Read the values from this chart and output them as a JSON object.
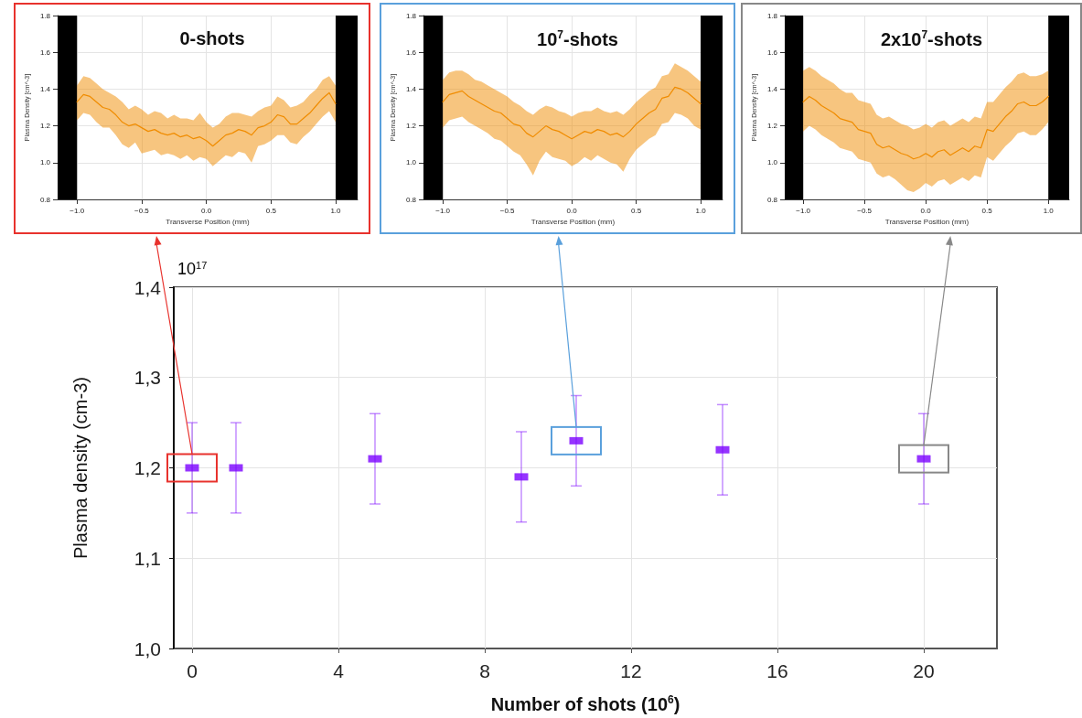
{
  "chart_data": [
    {
      "type": "line",
      "title": "0-shots",
      "xlabel": "Transverse Position (mm)",
      "ylabel": "Plasma Density [cm^-3]",
      "xlim": [
        -1.15,
        1.17
      ],
      "ylim": [
        0.8,
        1.8
      ],
      "xticks": [
        {
          "value": -1,
          "label": "−1.0"
        },
        {
          "value": -0.5,
          "label": "−0.5"
        },
        {
          "value": 0,
          "label": "0.0"
        },
        0.5,
        {
          "value": 1,
          "label": "1.0"
        }
      ],
      "yticks": [
        0.8,
        {
          "value": 1,
          "label": "1.0"
        },
        1.2,
        1.4,
        1.6,
        1.8
      ],
      "grid": true,
      "bands": [
        {
          "axis": "x",
          "from": -1.15,
          "to": -1.0,
          "color": "#000000"
        },
        {
          "axis": "x",
          "from": 1.0,
          "to": 1.17,
          "color": "#000000"
        }
      ],
      "x": [
        -1,
        -0.95,
        -0.9,
        -0.85,
        -0.8,
        -0.75,
        -0.7,
        -0.65,
        -0.6,
        -0.55,
        -0.5,
        -0.45,
        -0.4,
        -0.35,
        -0.3,
        -0.25,
        -0.2,
        -0.15,
        -0.1,
        -0.05,
        0,
        0.05,
        0.1,
        0.15,
        0.2,
        0.25,
        0.3,
        0.35,
        0.4,
        0.45,
        0.5,
        0.55,
        0.6,
        0.65,
        0.7,
        0.75,
        0.8,
        0.85,
        0.9,
        0.95,
        1
      ],
      "series": [
        {
          "color": "#f08c00",
          "values": [
            1.33,
            1.37,
            1.36,
            1.33,
            1.3,
            1.29,
            1.26,
            1.22,
            1.2,
            1.21,
            1.19,
            1.17,
            1.18,
            1.16,
            1.15,
            1.16,
            1.14,
            1.15,
            1.13,
            1.14,
            1.12,
            1.09,
            1.12,
            1.15,
            1.16,
            1.18,
            1.17,
            1.15,
            1.19,
            1.2,
            1.22,
            1.26,
            1.25,
            1.21,
            1.21,
            1.24,
            1.27,
            1.31,
            1.35,
            1.38,
            1.32
          ],
          "upper": [
            1.42,
            1.47,
            1.46,
            1.43,
            1.4,
            1.38,
            1.36,
            1.33,
            1.29,
            1.31,
            1.29,
            1.26,
            1.28,
            1.27,
            1.24,
            1.26,
            1.24,
            1.24,
            1.23,
            1.27,
            1.22,
            1.19,
            1.21,
            1.25,
            1.27,
            1.27,
            1.26,
            1.25,
            1.28,
            1.3,
            1.31,
            1.36,
            1.34,
            1.3,
            1.31,
            1.33,
            1.37,
            1.4,
            1.45,
            1.47,
            1.42
          ],
          "lower": [
            1.23,
            1.27,
            1.26,
            1.22,
            1.19,
            1.19,
            1.15,
            1.1,
            1.08,
            1.11,
            1.05,
            1.06,
            1.07,
            1.04,
            1.05,
            1.04,
            1.02,
            1.04,
            1.01,
            1.03,
            1.02,
            0.98,
            1.01,
            1.04,
            1.03,
            1.06,
            1.05,
            1.0,
            1.09,
            1.1,
            1.12,
            1.15,
            1.15,
            1.11,
            1.1,
            1.14,
            1.17,
            1.21,
            1.25,
            1.28,
            1.22
          ]
        }
      ]
    },
    {
      "type": "line",
      "title": "10$^{7}$-shots",
      "xlabel": "Transverse Position (mm)",
      "ylabel": "Plasma Density [cm^-3]",
      "xlim": [
        -1.15,
        1.17
      ],
      "ylim": [
        0.8,
        1.8
      ],
      "xticks": [
        {
          "value": -1,
          "label": "−1.0"
        },
        {
          "value": -0.5,
          "label": "−0.5"
        },
        {
          "value": 0,
          "label": "0.0"
        },
        0.5,
        {
          "value": 1,
          "label": "1.0"
        }
      ],
      "yticks": [
        0.8,
        {
          "value": 1,
          "label": "1.0"
        },
        1.2,
        1.4,
        1.6,
        1.8
      ],
      "grid": true,
      "bands": [
        {
          "axis": "x",
          "from": -1.15,
          "to": -1.0,
          "color": "#000000"
        },
        {
          "axis": "x",
          "from": 1.0,
          "to": 1.17,
          "color": "#000000"
        }
      ],
      "x": [
        -1,
        -0.95,
        -0.9,
        -0.85,
        -0.8,
        -0.75,
        -0.7,
        -0.65,
        -0.6,
        -0.55,
        -0.5,
        -0.45,
        -0.4,
        -0.35,
        -0.3,
        -0.25,
        -0.2,
        -0.15,
        -0.1,
        -0.05,
        0,
        0.05,
        0.1,
        0.15,
        0.2,
        0.25,
        0.3,
        0.35,
        0.4,
        0.45,
        0.5,
        0.55,
        0.6,
        0.65,
        0.7,
        0.75,
        0.8,
        0.85,
        0.9,
        0.95,
        1
      ],
      "series": [
        {
          "color": "#f08c00",
          "values": [
            1.33,
            1.37,
            1.38,
            1.39,
            1.36,
            1.34,
            1.32,
            1.3,
            1.28,
            1.27,
            1.24,
            1.21,
            1.2,
            1.16,
            1.14,
            1.17,
            1.2,
            1.18,
            1.17,
            1.15,
            1.13,
            1.15,
            1.17,
            1.16,
            1.18,
            1.17,
            1.15,
            1.16,
            1.14,
            1.17,
            1.21,
            1.24,
            1.27,
            1.29,
            1.35,
            1.36,
            1.41,
            1.4,
            1.38,
            1.35,
            1.32
          ],
          "upper": [
            1.45,
            1.49,
            1.5,
            1.5,
            1.48,
            1.45,
            1.44,
            1.42,
            1.4,
            1.38,
            1.36,
            1.33,
            1.31,
            1.28,
            1.26,
            1.29,
            1.31,
            1.3,
            1.28,
            1.27,
            1.25,
            1.27,
            1.28,
            1.28,
            1.3,
            1.28,
            1.27,
            1.28,
            1.26,
            1.29,
            1.33,
            1.36,
            1.39,
            1.41,
            1.47,
            1.48,
            1.54,
            1.52,
            1.5,
            1.47,
            1.44
          ],
          "lower": [
            1.19,
            1.23,
            1.24,
            1.25,
            1.22,
            1.2,
            1.18,
            1.16,
            1.13,
            1.12,
            1.09,
            1.06,
            1.04,
            0.99,
            0.93,
            1.01,
            1.06,
            1.03,
            1.02,
            1.01,
            0.98,
            1.0,
            1.03,
            1.01,
            1.04,
            1.02,
            1.0,
            0.99,
            0.95,
            1.02,
            1.07,
            1.1,
            1.13,
            1.15,
            1.21,
            1.22,
            1.27,
            1.26,
            1.24,
            1.2,
            1.18
          ]
        }
      ]
    },
    {
      "type": "line",
      "title": "2x10$^{7}$-shots",
      "xlabel": "Transverse Position (mm)",
      "ylabel": "Plasma Density [cm^-3]",
      "xlim": [
        -1.15,
        1.17
      ],
      "ylim": [
        0.8,
        1.8
      ],
      "xticks": [
        {
          "value": -1,
          "label": "−1.0"
        },
        {
          "value": -0.5,
          "label": "−0.5"
        },
        {
          "value": 0,
          "label": "0.0"
        },
        0.5,
        {
          "value": 1,
          "label": "1.0"
        }
      ],
      "yticks": [
        0.8,
        {
          "value": 1,
          "label": "1.0"
        },
        1.2,
        1.4,
        1.6,
        1.8
      ],
      "grid": true,
      "bands": [
        {
          "axis": "x",
          "from": -1.15,
          "to": -1.0,
          "color": "#000000"
        },
        {
          "axis": "x",
          "from": 1.0,
          "to": 1.17,
          "color": "#000000"
        }
      ],
      "x": [
        -1,
        -0.95,
        -0.9,
        -0.85,
        -0.8,
        -0.75,
        -0.7,
        -0.65,
        -0.6,
        -0.55,
        -0.5,
        -0.45,
        -0.4,
        -0.35,
        -0.3,
        -0.25,
        -0.2,
        -0.15,
        -0.1,
        -0.05,
        0,
        0.05,
        0.1,
        0.15,
        0.2,
        0.25,
        0.3,
        0.35,
        0.4,
        0.45,
        0.5,
        0.55,
        0.6,
        0.65,
        0.7,
        0.75,
        0.8,
        0.85,
        0.9,
        0.95,
        1
      ],
      "series": [
        {
          "color": "#f08c00",
          "values": [
            1.33,
            1.36,
            1.34,
            1.31,
            1.29,
            1.27,
            1.24,
            1.23,
            1.22,
            1.18,
            1.17,
            1.16,
            1.1,
            1.08,
            1.09,
            1.07,
            1.05,
            1.04,
            1.02,
            1.03,
            1.05,
            1.03,
            1.06,
            1.07,
            1.04,
            1.06,
            1.08,
            1.06,
            1.09,
            1.08,
            1.18,
            1.17,
            1.21,
            1.25,
            1.28,
            1.32,
            1.33,
            1.31,
            1.31,
            1.33,
            1.36
          ],
          "upper": [
            1.5,
            1.52,
            1.5,
            1.47,
            1.45,
            1.43,
            1.4,
            1.38,
            1.38,
            1.34,
            1.33,
            1.32,
            1.26,
            1.24,
            1.25,
            1.23,
            1.21,
            1.2,
            1.18,
            1.19,
            1.21,
            1.19,
            1.22,
            1.23,
            1.2,
            1.22,
            1.24,
            1.22,
            1.25,
            1.24,
            1.33,
            1.33,
            1.37,
            1.41,
            1.44,
            1.48,
            1.49,
            1.47,
            1.47,
            1.48,
            1.5
          ],
          "lower": [
            1.17,
            1.2,
            1.18,
            1.15,
            1.13,
            1.11,
            1.08,
            1.07,
            1.06,
            1.02,
            1.01,
            1.0,
            0.94,
            0.92,
            0.93,
            0.91,
            0.88,
            0.85,
            0.84,
            0.86,
            0.89,
            0.87,
            0.9,
            0.91,
            0.88,
            0.9,
            0.92,
            0.9,
            0.93,
            0.92,
            1.03,
            1.01,
            1.05,
            1.09,
            1.12,
            1.16,
            1.17,
            1.15,
            1.15,
            1.18,
            1.22
          ]
        }
      ]
    },
    {
      "type": "scatter",
      "xlabel": "Number of shots (10$^{6}$)",
      "ylabel": "Plasma density (cm-3)",
      "annotations": [
        "10$^{17}$"
      ],
      "xlim": [
        -0.5,
        22
      ],
      "ylim": [
        1.0,
        1.4
      ],
      "xticks": [
        0,
        4,
        8,
        12,
        16,
        20
      ],
      "yticks": [
        {
          "value": 1.0,
          "label": "1,0"
        },
        {
          "value": 1.1,
          "label": "1,1"
        },
        {
          "value": 1.2,
          "label": "1,2"
        },
        {
          "value": 1.3,
          "label": "1,3"
        },
        {
          "value": 1.4,
          "label": "1,4"
        }
      ],
      "grid": true,
      "marker": "square",
      "x": [
        0,
        1.2,
        5,
        9,
        10.5,
        14.5,
        20
      ],
      "series": [
        {
          "color": "#7b00ff",
          "values": [
            1.2,
            1.2,
            1.21,
            1.19,
            1.23,
            1.22,
            1.21
          ],
          "errors": [
            0.05,
            0.05,
            0.05,
            0.05,
            0.05,
            0.05,
            0.05
          ]
        }
      ]
    }
  ]
}
